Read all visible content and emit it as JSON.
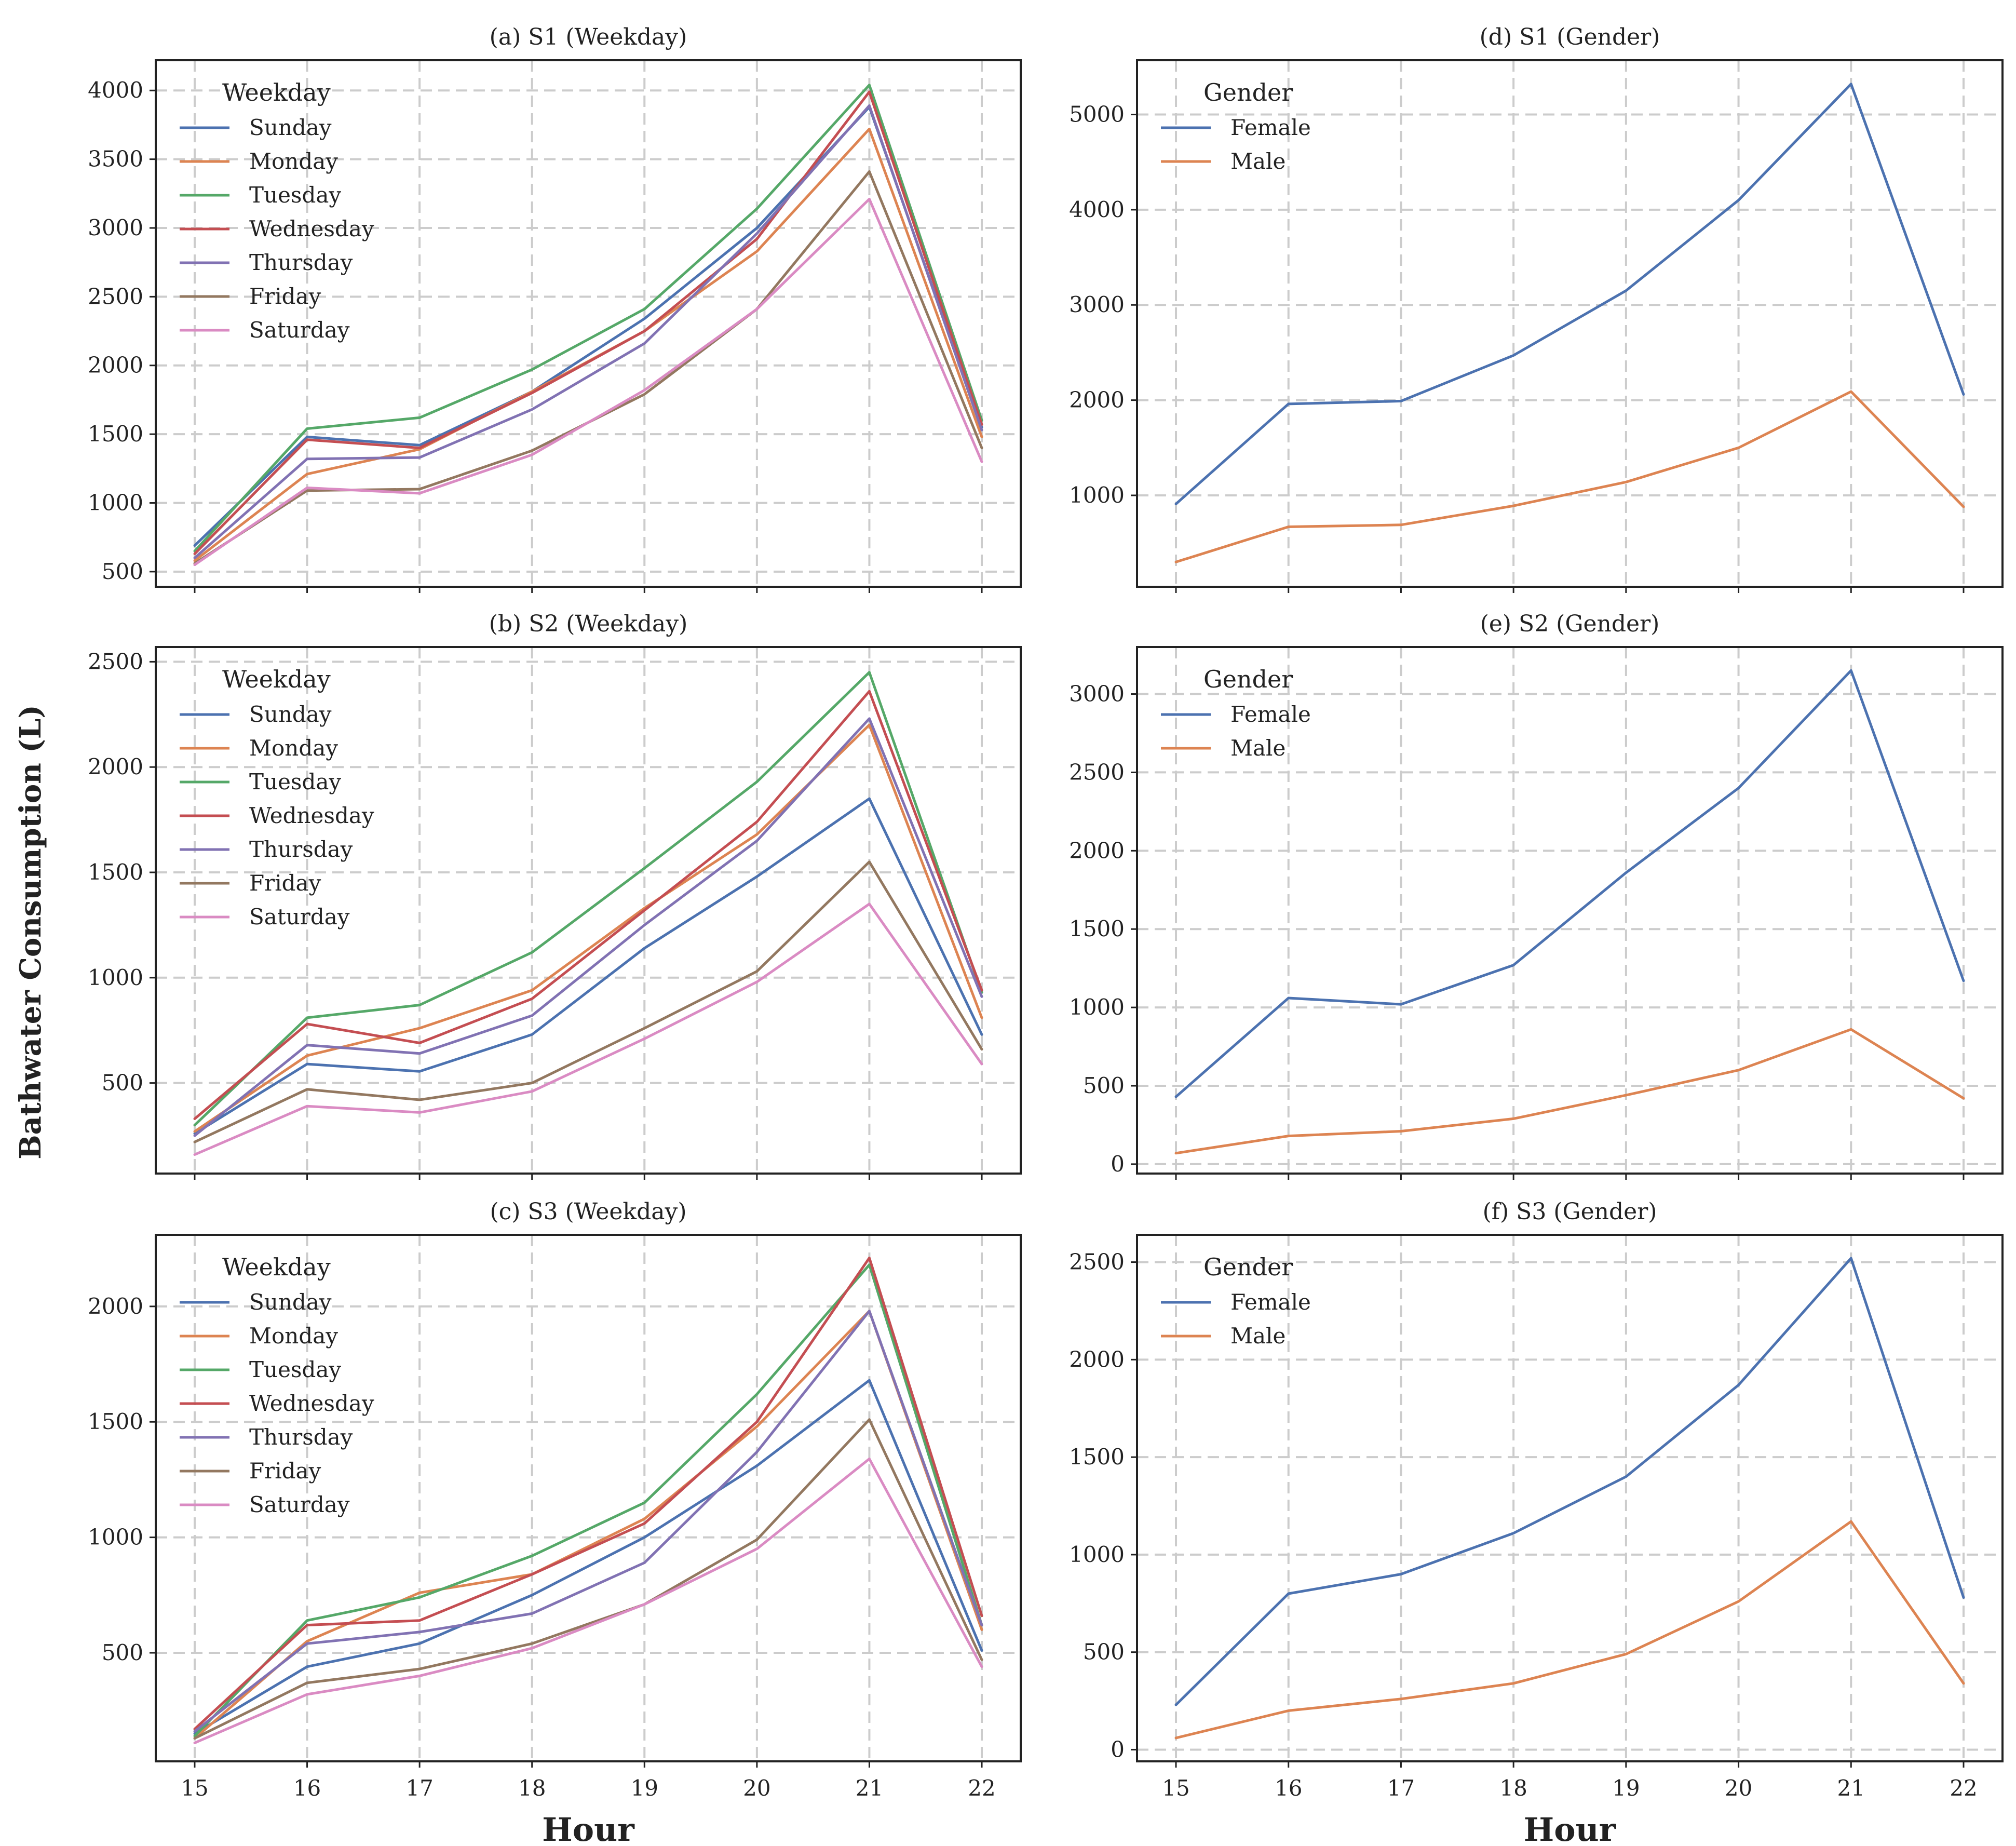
{
  "figure": {
    "ylabel": "Bathwater Consumption (L)",
    "xlabel": "Hour"
  },
  "colors": {
    "Sunday": "#4c72b0",
    "Monday": "#dd8452",
    "Tuesday": "#55a868",
    "Wednesday": "#c44e52",
    "Thursday": "#8172b3",
    "Friday": "#937860",
    "Saturday": "#da8bc3",
    "Female": "#4c72b0",
    "Male": "#dd8452"
  },
  "chart_data": [
    {
      "type": "line",
      "title": "(a) S1 (Weekday)",
      "legend_title": "Weekday",
      "legend_placement": "top-left",
      "grid": true,
      "xlabel": "",
      "ylabel": "Bathwater Consumption (L)",
      "x": [
        15,
        16,
        17,
        18,
        19,
        20,
        21,
        22
      ],
      "xticks": [
        "15",
        "16",
        "17",
        "18",
        "19",
        "20",
        "21",
        "22"
      ],
      "ylim": [
        390,
        4220
      ],
      "yticks": [
        500,
        1000,
        1500,
        2000,
        2500,
        3000,
        3500,
        4000
      ],
      "ytick_labels": [
        "500",
        "1000",
        "1500",
        "2000",
        "2500",
        "3000",
        "3500",
        "4000"
      ],
      "series": [
        {
          "name": "Sunday",
          "values": [
            690,
            1480,
            1420,
            1810,
            2340,
            3000,
            3880,
            1550
          ]
        },
        {
          "name": "Monday",
          "values": [
            580,
            1210,
            1390,
            1810,
            2250,
            2830,
            3720,
            1480
          ]
        },
        {
          "name": "Tuesday",
          "values": [
            650,
            1540,
            1620,
            1970,
            2410,
            3140,
            4040,
            1600
          ]
        },
        {
          "name": "Wednesday",
          "values": [
            630,
            1460,
            1400,
            1800,
            2250,
            2920,
            3990,
            1570
          ]
        },
        {
          "name": "Thursday",
          "values": [
            600,
            1320,
            1330,
            1680,
            2160,
            2960,
            3890,
            1530
          ]
        },
        {
          "name": "Friday",
          "values": [
            560,
            1090,
            1100,
            1380,
            1790,
            2410,
            3410,
            1400
          ]
        },
        {
          "name": "Saturday",
          "values": [
            550,
            1110,
            1070,
            1350,
            1820,
            2410,
            3210,
            1300
          ]
        }
      ]
    },
    {
      "type": "line",
      "title": "(b) S2 (Weekday)",
      "legend_title": "Weekday",
      "legend_placement": "top-left",
      "grid": true,
      "xlabel": "",
      "ylabel": "Bathwater Consumption (L)",
      "x": [
        15,
        16,
        17,
        18,
        19,
        20,
        21,
        22
      ],
      "xticks": [
        "15",
        "16",
        "17",
        "18",
        "19",
        "20",
        "21",
        "22"
      ],
      "ylim": [
        70,
        2570
      ],
      "yticks": [
        500,
        1000,
        1500,
        2000,
        2500
      ],
      "ytick_labels": [
        "500",
        "1000",
        "1500",
        "2000",
        "2500"
      ],
      "series": [
        {
          "name": "Sunday",
          "values": [
            260,
            590,
            555,
            730,
            1140,
            1480,
            1850,
            730
          ]
        },
        {
          "name": "Monday",
          "values": [
            270,
            630,
            760,
            940,
            1330,
            1680,
            2200,
            810
          ]
        },
        {
          "name": "Tuesday",
          "values": [
            300,
            810,
            870,
            1120,
            1520,
            1930,
            2450,
            930
          ]
        },
        {
          "name": "Wednesday",
          "values": [
            330,
            780,
            690,
            900,
            1320,
            1740,
            2360,
            940
          ]
        },
        {
          "name": "Thursday",
          "values": [
            250,
            680,
            640,
            820,
            1250,
            1650,
            2230,
            910
          ]
        },
        {
          "name": "Friday",
          "values": [
            220,
            470,
            420,
            500,
            760,
            1030,
            1550,
            660
          ]
        },
        {
          "name": "Saturday",
          "values": [
            160,
            390,
            360,
            460,
            710,
            980,
            1350,
            590
          ]
        }
      ]
    },
    {
      "type": "line",
      "title": "(c) S3 (Weekday)",
      "legend_title": "Weekday",
      "legend_placement": "top-left",
      "grid": true,
      "xlabel": "Hour",
      "ylabel": "Bathwater Consumption (L)",
      "x": [
        15,
        16,
        17,
        18,
        19,
        20,
        21,
        22
      ],
      "xticks": [
        "15",
        "16",
        "17",
        "18",
        "19",
        "20",
        "21",
        "22"
      ],
      "ylim": [
        30,
        2310
      ],
      "yticks": [
        500,
        1000,
        1500,
        2000
      ],
      "ytick_labels": [
        "500",
        "1000",
        "1500",
        "2000"
      ],
      "series": [
        {
          "name": "Sunday",
          "values": [
            150,
            440,
            540,
            750,
            1000,
            1310,
            1680,
            510
          ]
        },
        {
          "name": "Monday",
          "values": [
            130,
            550,
            760,
            840,
            1080,
            1480,
            1980,
            600
          ]
        },
        {
          "name": "Tuesday",
          "values": [
            140,
            640,
            740,
            920,
            1150,
            1620,
            2180,
            620
          ]
        },
        {
          "name": "Wednesday",
          "values": [
            170,
            620,
            640,
            840,
            1060,
            1500,
            2210,
            660
          ]
        },
        {
          "name": "Thursday",
          "values": [
            160,
            540,
            590,
            670,
            890,
            1370,
            1980,
            620
          ]
        },
        {
          "name": "Friday",
          "values": [
            130,
            370,
            430,
            540,
            710,
            990,
            1510,
            470
          ]
        },
        {
          "name": "Saturday",
          "values": [
            110,
            320,
            400,
            520,
            710,
            950,
            1340,
            440
          ]
        }
      ]
    },
    {
      "type": "line",
      "title": "(d) S1 (Gender)",
      "legend_title": "Gender",
      "legend_placement": "top-left",
      "grid": true,
      "xlabel": "",
      "ylabel": "",
      "x": [
        15,
        16,
        17,
        18,
        19,
        20,
        21,
        22
      ],
      "xticks": [
        "15",
        "16",
        "17",
        "18",
        "19",
        "20",
        "21",
        "22"
      ],
      "ylim": [
        40,
        5570
      ],
      "yticks": [
        1000,
        2000,
        3000,
        4000,
        5000
      ],
      "ytick_labels": [
        "1000",
        "2000",
        "3000",
        "4000",
        "5000"
      ],
      "series": [
        {
          "name": "Female",
          "values": [
            910,
            1960,
            1990,
            2470,
            3150,
            4100,
            5320,
            2060
          ]
        },
        {
          "name": "Male",
          "values": [
            300,
            670,
            690,
            890,
            1140,
            1500,
            2090,
            880
          ]
        }
      ]
    },
    {
      "type": "line",
      "title": "(e) S2 (Gender)",
      "legend_title": "Gender",
      "legend_placement": "top-left",
      "grid": true,
      "xlabel": "",
      "ylabel": "",
      "x": [
        15,
        16,
        17,
        18,
        19,
        20,
        21,
        22
      ],
      "xticks": [
        "15",
        "16",
        "17",
        "18",
        "19",
        "20",
        "21",
        "22"
      ],
      "ylim": [
        -60,
        3300
      ],
      "yticks": [
        0,
        500,
        1000,
        1500,
        2000,
        2500,
        3000
      ],
      "ytick_labels": [
        "0",
        "500",
        "1000",
        "1500",
        "2000",
        "2500",
        "3000"
      ],
      "series": [
        {
          "name": "Female",
          "values": [
            430,
            1060,
            1020,
            1270,
            1860,
            2400,
            3150,
            1170
          ]
        },
        {
          "name": "Male",
          "values": [
            70,
            180,
            210,
            290,
            440,
            600,
            860,
            420
          ]
        }
      ]
    },
    {
      "type": "line",
      "title": "(f) S3 (Gender)",
      "legend_title": "Gender",
      "legend_placement": "top-left",
      "grid": true,
      "xlabel": "Hour",
      "ylabel": "",
      "x": [
        15,
        16,
        17,
        18,
        19,
        20,
        21,
        22
      ],
      "xticks": [
        "15",
        "16",
        "17",
        "18",
        "19",
        "20",
        "21",
        "22"
      ],
      "ylim": [
        -60,
        2640
      ],
      "yticks": [
        0,
        500,
        1000,
        1500,
        2000,
        2500
      ],
      "ytick_labels": [
        "0",
        "500",
        "1000",
        "1500",
        "2000",
        "2500"
      ],
      "series": [
        {
          "name": "Female",
          "values": [
            230,
            800,
            900,
            1110,
            1400,
            1870,
            2520,
            780
          ]
        },
        {
          "name": "Male",
          "values": [
            60,
            200,
            260,
            340,
            490,
            760,
            1170,
            340
          ]
        }
      ]
    }
  ]
}
